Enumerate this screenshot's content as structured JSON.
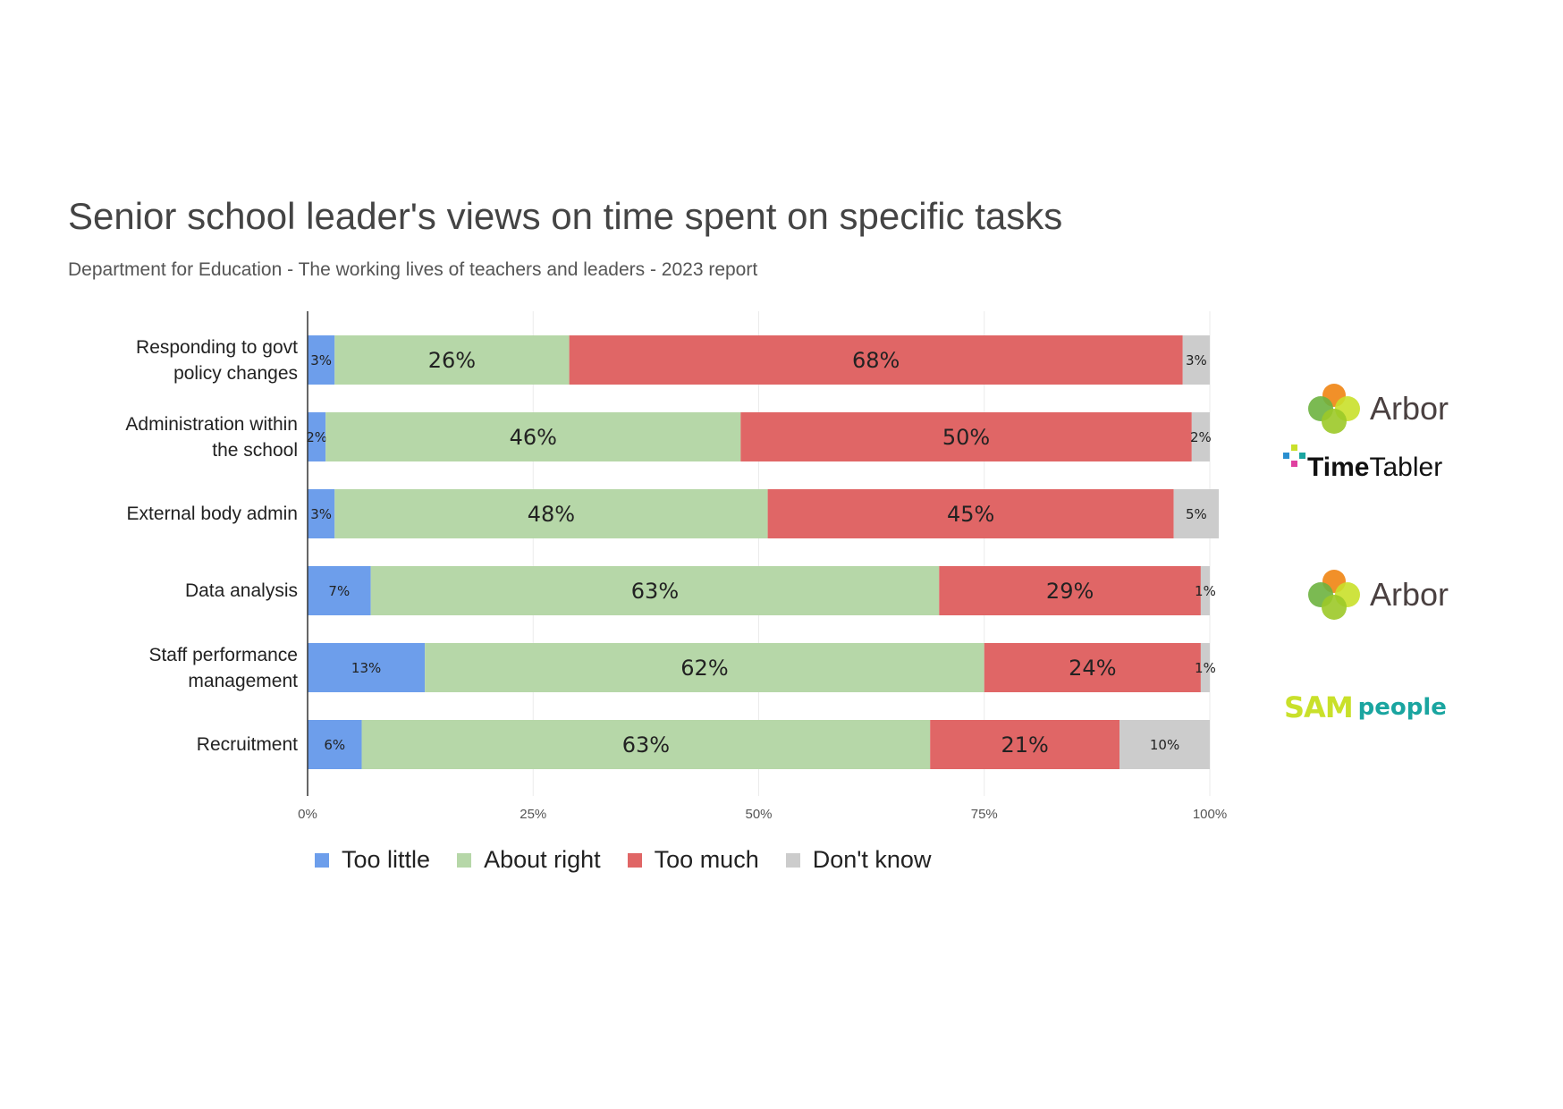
{
  "chart_data": {
    "type": "bar",
    "orientation": "horizontal",
    "stacked": true,
    "title": "Senior school leader's views on time spent on specific tasks",
    "subtitle": "Department for Education - The working lives of teachers and leaders - 2023 report",
    "xlabel": "",
    "ylabel": "",
    "xlim": [
      0,
      100
    ],
    "x_ticks": [
      "0%",
      "25%",
      "50%",
      "75%",
      "100%"
    ],
    "grid": true,
    "legend_position": "bottom-left",
    "categories": [
      "Responding to govt policy changes",
      "Administration within the school",
      "External body admin",
      "Data analysis",
      "Staff performance management",
      "Recruitment"
    ],
    "category_lines": [
      [
        "Responding to govt",
        "policy changes"
      ],
      [
        "Administration within",
        "the school"
      ],
      [
        "External body admin"
      ],
      [
        "Data analysis"
      ],
      [
        "Staff performance",
        "management"
      ],
      [
        "Recruitment"
      ]
    ],
    "series": [
      {
        "name": "Too little",
        "color": "#6d9eeb",
        "values": [
          3,
          2,
          3,
          7,
          13,
          6
        ]
      },
      {
        "name": "About right",
        "color": "#b6d7a8",
        "values": [
          26,
          46,
          48,
          63,
          62,
          63
        ]
      },
      {
        "name": "Too much",
        "color": "#e06666",
        "values": [
          68,
          50,
          45,
          29,
          24,
          21
        ]
      },
      {
        "name": "Don't know",
        "color": "#cccccc",
        "values": [
          3,
          2,
          5,
          1,
          1,
          10
        ]
      }
    ]
  },
  "logos": {
    "arbor_1": "Arbor",
    "timetabler_bold": "Time",
    "timetabler_regular": "Tabler",
    "arbor_2": "Arbor",
    "sam": "SAM",
    "people": "people"
  }
}
